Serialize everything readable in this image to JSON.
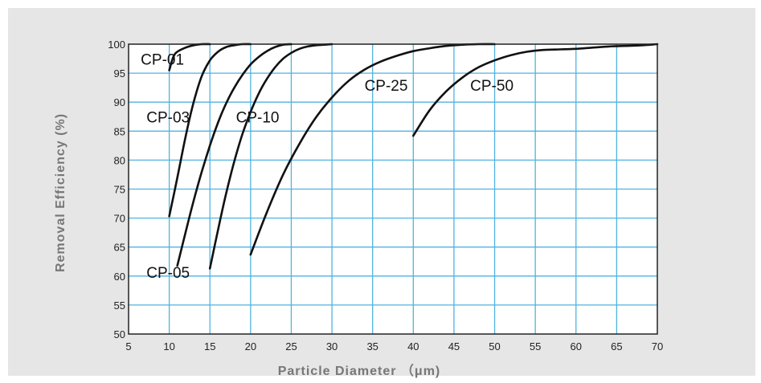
{
  "chart_data": {
    "type": "line",
    "title": "",
    "xlabel": "Particle  Diameter （μm)",
    "ylabel": "Removal Efficiency (%)",
    "xlim": [
      5,
      70
    ],
    "ylim": [
      50,
      100
    ],
    "x_ticks": [
      5,
      10,
      15,
      20,
      25,
      30,
      35,
      40,
      45,
      50,
      55,
      60,
      65,
      70
    ],
    "y_ticks": [
      50,
      55,
      60,
      65,
      70,
      75,
      80,
      85,
      90,
      95,
      100
    ],
    "grid": true,
    "legend": "none",
    "series": [
      {
        "name": "CP-01",
        "x": [
          10,
          10.5,
          11,
          12,
          13,
          14,
          15
        ],
        "y": [
          95.5,
          97.8,
          98.7,
          99.4,
          99.8,
          100,
          100
        ],
        "label_at": [
          6.5,
          96.5
        ]
      },
      {
        "name": "CP-03",
        "x": [
          10,
          11,
          12,
          13,
          14,
          15,
          16,
          17,
          18,
          19,
          20
        ],
        "y": [
          70.3,
          77,
          84,
          90,
          94.5,
          97.2,
          98.7,
          99.5,
          99.8,
          100,
          100
        ],
        "label_at": [
          7.2,
          86.5
        ]
      },
      {
        "name": "CP-05",
        "x": [
          11,
          12,
          13,
          14,
          15,
          16,
          17,
          18,
          19,
          20,
          21,
          22,
          23,
          24,
          25
        ],
        "y": [
          61.8,
          67.5,
          73,
          78,
          82.5,
          86.5,
          89.8,
          92.5,
          94.7,
          96.5,
          97.8,
          98.8,
          99.5,
          99.9,
          100
        ],
        "label_at": [
          7.2,
          59.7
        ]
      },
      {
        "name": "CP-10",
        "x": [
          15,
          16,
          17,
          18,
          19,
          20,
          21,
          22,
          23,
          24,
          25,
          26,
          27,
          28,
          29,
          30
        ],
        "y": [
          61.3,
          68,
          74.3,
          79.8,
          84.5,
          88.3,
          91.5,
          94,
          96,
          97.5,
          98.5,
          99.2,
          99.6,
          99.8,
          99.9,
          100
        ],
        "label_at": [
          18.2,
          86.5
        ]
      },
      {
        "name": "CP-25",
        "x": [
          20,
          22,
          24,
          26,
          28,
          30,
          32,
          34,
          36,
          38,
          40,
          42,
          44,
          46,
          48,
          50
        ],
        "y": [
          63.7,
          71,
          77.5,
          82.8,
          87.3,
          90.8,
          93.6,
          95.6,
          97,
          98,
          98.8,
          99.3,
          99.7,
          99.9,
          100,
          100
        ],
        "label_at": [
          34,
          92
        ]
      },
      {
        "name": "CP-50",
        "x": [
          40,
          42,
          44,
          46,
          48,
          50,
          52,
          54,
          56,
          58,
          60,
          62,
          64,
          66,
          68,
          70
        ],
        "y": [
          84.2,
          88.6,
          91.8,
          94.2,
          96,
          97.2,
          98.1,
          98.7,
          99,
          99.1,
          99.2,
          99.4,
          99.6,
          99.7,
          99.8,
          100
        ],
        "label_at": [
          47,
          92
        ]
      }
    ]
  }
}
